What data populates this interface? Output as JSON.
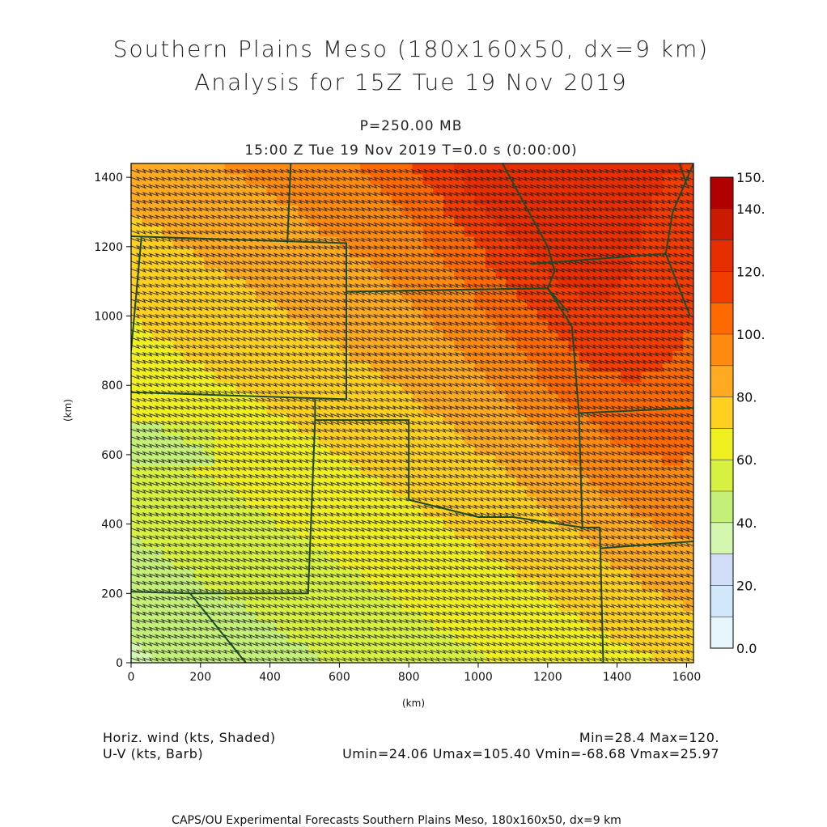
{
  "header": {
    "title_line1": "Southern Plains Meso (180x160x50, dx=9 km)",
    "title_line2": "Analysis for 15Z Tue 19 Nov 2019",
    "level": "P=250.00 MB",
    "time": "15:00 Z Tue 19 Nov 2019    T=0.0 s (0:00:00)"
  },
  "axes": {
    "x_label": "(km)",
    "y_label": "(km)",
    "x_ticks": [
      "0",
      "200",
      "400",
      "600",
      "800",
      "1000",
      "1200",
      "1400",
      "1600"
    ],
    "y_ticks": [
      "0",
      "200",
      "400",
      "600",
      "800",
      "1000",
      "1200",
      "1400"
    ],
    "x_range": [
      0,
      1620
    ],
    "y_range": [
      0,
      1440
    ]
  },
  "colorbar": {
    "labels": [
      "150.",
      "140.",
      "120.",
      "100.",
      "80.",
      "60.",
      "40.",
      "20.",
      "0.0"
    ],
    "colors": [
      "#b00000",
      "#cc1a00",
      "#e62e00",
      "#f23c00",
      "#ff6a00",
      "#ff8a10",
      "#ffaa20",
      "#ffd020",
      "#f0f020",
      "#d8f040",
      "#c4f07a",
      "#d4f7b0",
      "#d0dcf8",
      "#d0e8fa",
      "#e6f6fc"
    ]
  },
  "field_info": {
    "left_line1": "Horiz. wind (kts, Shaded)",
    "left_line2": "U-V (kts, Barb)",
    "right_line1": "Min=28.4 Max=120.",
    "right_line2": "Umin=24.06 Umax=105.40 Vmin=-68.68 Vmax=25.97"
  },
  "footer": "CAPS/OU Experimental Forecasts  Southern Plains Meso, 180x160x50, dx=9 km",
  "colors": {
    "border": "#1f4a2a",
    "barb": "#1a1a1a"
  }
}
